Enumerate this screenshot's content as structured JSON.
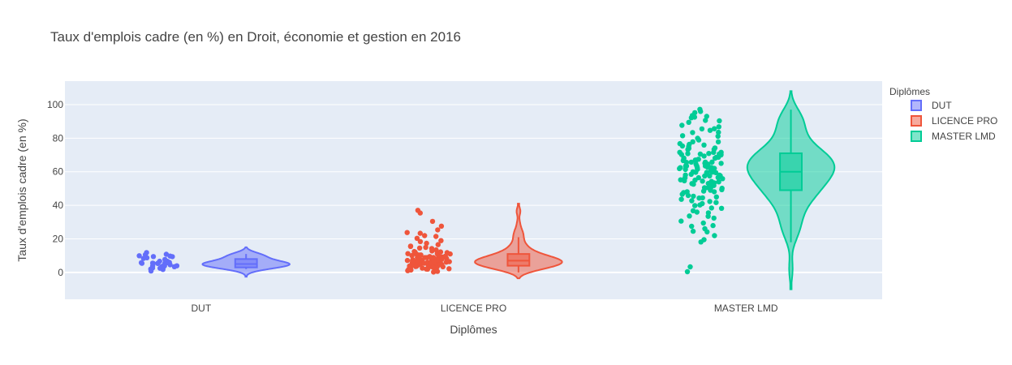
{
  "chart_data": {
    "type": "violin",
    "title": "Taux d'emplois cadre (en %) en Droit, économie et gestion en 2016",
    "xlabel": "Diplômes",
    "ylabel": "Taux d'emplois cadre (en %)",
    "ylim": [
      -16,
      114
    ],
    "yticks": [
      0,
      20,
      40,
      60,
      80,
      100
    ],
    "grid": true,
    "legend_title": "Diplômes",
    "legend_position": "top-right",
    "categories": [
      "DUT",
      "LICENCE PRO",
      "MASTER LMD"
    ],
    "series": [
      {
        "name": "DUT",
        "color": "#636efa",
        "fill": "rgba(99,110,250,0.5)",
        "box": {
          "q1": 3,
          "median": 5,
          "q3": 8,
          "lowerfence": 2,
          "upperfence": 11
        },
        "kde_range": [
          -2.5,
          15
        ],
        "kde_peak": 4,
        "points": [
          2,
          3,
          4,
          5,
          5,
          6,
          6,
          7,
          8,
          9,
          10,
          11,
          12,
          3,
          4,
          5,
          6,
          2,
          4,
          7,
          9,
          10,
          5,
          6,
          3,
          4,
          8,
          1,
          5,
          6,
          11,
          4,
          9,
          3,
          6,
          5
        ]
      },
      {
        "name": "LICENCE PRO",
        "color": "#ef553b",
        "fill": "rgba(239,85,59,0.5)",
        "box": {
          "q1": 4,
          "median": 7,
          "q3": 11,
          "lowerfence": 0,
          "upperfence": 21
        },
        "kde_range": [
          -3.5,
          41
        ],
        "kde_peak": 7,
        "points": [
          0,
          1,
          2,
          3,
          4,
          5,
          6,
          7,
          8,
          9,
          10,
          11,
          12,
          13,
          14,
          15,
          16,
          17,
          18,
          20,
          22,
          24,
          25,
          27,
          30,
          36,
          37,
          3,
          5,
          6,
          7,
          8,
          4,
          5,
          6,
          9,
          10,
          2,
          3,
          5,
          6,
          7,
          8,
          9,
          4,
          6,
          7,
          8,
          11,
          12,
          1,
          2,
          4,
          5,
          6,
          7,
          8,
          10,
          3,
          5,
          6,
          7,
          9,
          11,
          13,
          15,
          4,
          6,
          8,
          10,
          2,
          5,
          7,
          9,
          12,
          14,
          16,
          19,
          21,
          23,
          3,
          6,
          8,
          11,
          5,
          7,
          9,
          4,
          6,
          8,
          10,
          12,
          1,
          3,
          5,
          7,
          9,
          2,
          4,
          6
        ]
      },
      {
        "name": "MASTER LMD",
        "color": "#00cc96",
        "fill": "rgba(0,204,150,0.5)",
        "box": {
          "q1": 49,
          "median": 60,
          "q3": 71,
          "lowerfence": 18,
          "upperfence": 97
        },
        "kde_range": [
          -10,
          108
        ],
        "kde_peak": 62,
        "points": [
          1,
          3,
          18,
          20,
          22,
          24,
          25,
          26,
          28,
          30,
          32,
          34,
          35,
          36,
          38,
          40,
          41,
          42,
          43,
          44,
          45,
          46,
          47,
          48,
          49,
          50,
          50,
          51,
          52,
          53,
          54,
          55,
          55,
          56,
          57,
          58,
          59,
          60,
          60,
          61,
          62,
          62,
          63,
          64,
          65,
          65,
          66,
          67,
          68,
          69,
          70,
          70,
          71,
          72,
          73,
          74,
          75,
          76,
          77,
          78,
          80,
          82,
          84,
          85,
          86,
          88,
          90,
          92,
          94,
          95,
          96,
          97,
          45,
          48,
          52,
          55,
          58,
          60,
          62,
          63,
          65,
          67,
          68,
          70,
          72,
          50,
          53,
          56,
          59,
          61,
          64,
          66,
          69,
          71,
          74,
          46,
          49,
          54,
          57,
          60,
          63,
          66,
          68,
          70,
          73,
          44,
          51,
          58,
          62,
          65,
          67,
          69,
          55,
          60,
          64,
          40,
          47,
          52,
          57,
          61,
          75,
          79,
          83,
          87,
          91,
          93,
          30,
          37,
          42,
          48,
          53,
          59,
          63,
          68,
          72,
          76,
          81,
          89,
          27,
          33,
          39,
          56,
          62,
          66,
          71,
          78,
          85,
          92
        ]
      }
    ]
  }
}
